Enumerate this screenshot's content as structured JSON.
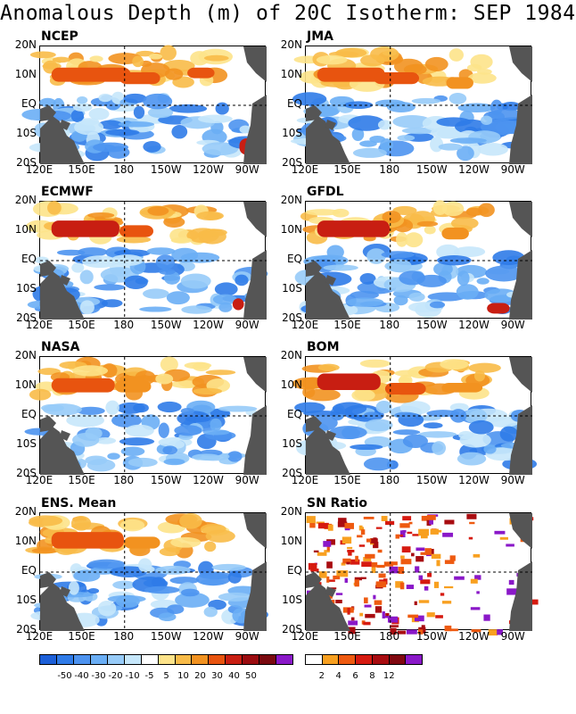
{
  "title": "Anomalous Depth (m) of 20C Isotherm: SEP 1984",
  "lat_labels": [
    "20N",
    "10N",
    "EQ",
    "10S",
    "20S"
  ],
  "lon_labels": [
    "120E",
    "150E",
    "180",
    "150W",
    "120W",
    "90W"
  ],
  "panels": [
    {
      "label": "NCEP",
      "hot": [
        [
          0.05,
          0.18,
          0.35,
          0.12,
          1
        ],
        [
          0.35,
          0.22,
          0.18,
          0.1,
          1
        ],
        [
          0.65,
          0.18,
          0.12,
          0.09,
          1
        ],
        [
          0.88,
          0.78,
          0.07,
          0.14,
          2
        ]
      ]
    },
    {
      "label": "JMA",
      "hot": [
        [
          0.05,
          0.18,
          0.3,
          0.12,
          1
        ],
        [
          0.3,
          0.22,
          0.2,
          0.1,
          1
        ],
        [
          0.62,
          0.26,
          0.12,
          0.1,
          0
        ]
      ]
    },
    {
      "label": "ECMWF",
      "hot": [
        [
          0.05,
          0.16,
          0.3,
          0.14,
          2
        ],
        [
          0.35,
          0.2,
          0.15,
          0.1,
          1
        ],
        [
          0.85,
          0.82,
          0.05,
          0.1,
          3
        ]
      ]
    },
    {
      "label": "GFDL",
      "hot": [
        [
          0.05,
          0.16,
          0.32,
          0.14,
          2
        ],
        [
          0.6,
          0.22,
          0.12,
          0.1,
          0
        ],
        [
          0.8,
          0.86,
          0.1,
          0.09,
          2
        ]
      ]
    },
    {
      "label": "NASA",
      "hot": [
        [
          0.05,
          0.18,
          0.28,
          0.12,
          1
        ],
        [
          0.33,
          0.2,
          0.16,
          0.1,
          0
        ]
      ]
    },
    {
      "label": "BOM",
      "hot": [
        [
          0.05,
          0.14,
          0.28,
          0.14,
          2
        ],
        [
          0.35,
          0.22,
          0.18,
          0.1,
          1
        ],
        [
          0.6,
          0.22,
          0.18,
          0.08,
          0
        ]
      ]
    },
    {
      "label": "ENS. Mean",
      "hot": [
        [
          0.05,
          0.16,
          0.32,
          0.14,
          1
        ],
        [
          0.37,
          0.2,
          0.16,
          0.1,
          0
        ]
      ]
    },
    {
      "label": "SN Ratio",
      "hot": []
    }
  ],
  "colorbar_anomaly": {
    "colors": [
      "#1c5fd8",
      "#2f7be8",
      "#4d93f0",
      "#6aaef5",
      "#97cbf8",
      "#c6e7fb",
      "#ffffff",
      "#fde38a",
      "#f8bb48",
      "#f29220",
      "#e8540f",
      "#c81e12",
      "#9b0c10",
      "#7a0a10",
      "#8a18c8"
    ],
    "labels": [
      "-50",
      "-40",
      "-30",
      "-20",
      "-10",
      "-5",
      "5",
      "10",
      "20",
      "30",
      "40",
      "50"
    ]
  },
  "colorbar_sn": {
    "colors": [
      "#ffffff",
      "#f8a020",
      "#ee5a10",
      "#d61a10",
      "#a80c10",
      "#800810",
      "#8a18c8"
    ],
    "labels": [
      "2",
      "4",
      "6",
      "8",
      "12"
    ]
  },
  "colors": {
    "land": "#555555",
    "ocean_neutral": "#ffffff"
  }
}
